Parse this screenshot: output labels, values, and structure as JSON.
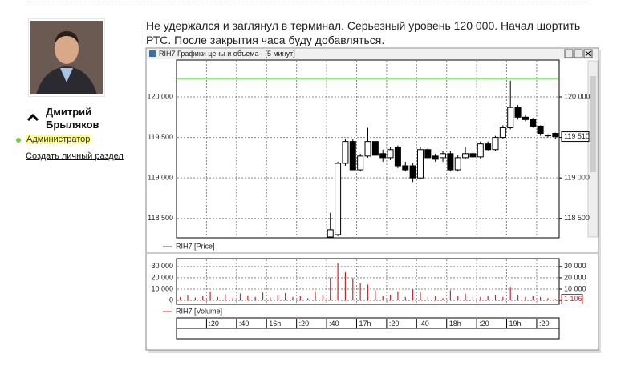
{
  "user": {
    "name": "Дмитрий Брыляков",
    "role": "Администратор",
    "link": "Создать личный раздел"
  },
  "post": {
    "text": "Не удержался и заглянул в терминал. Серьезный уровень 120 000. Начал шортить РТС. После закрытия часа буду добавляться."
  },
  "window": {
    "title": "RIH7 Графики цены и объема - [5 минут]"
  },
  "chart_data": [
    {
      "type": "candlestick",
      "legend": "RIH7 [Price]",
      "xlim": [
        0,
        51
      ],
      "ylim": [
        118260,
        120455
      ],
      "yticks": [
        {
          "value": 118500,
          "label": "118 500"
        },
        {
          "value": 119000,
          "label": "119 000"
        },
        {
          "value": 119500,
          "label": "119 500"
        },
        {
          "value": 120000,
          "label": "120 000"
        }
      ],
      "grid": true,
      "level": 120220,
      "level_color": "#66dd44",
      "up_color": "#ffffff",
      "down_color": "#000000",
      "last": {
        "value": 119510,
        "label": "119 510"
      },
      "candles": [
        {
          "x": 20,
          "open": 118270,
          "high": 118570,
          "low": 118260,
          "close": 118360
        },
        {
          "x": 21,
          "open": 118300,
          "high": 119200,
          "low": 118280,
          "close": 119180
        },
        {
          "x": 22,
          "open": 119180,
          "high": 119480,
          "low": 119150,
          "close": 119450
        },
        {
          "x": 23,
          "open": 119450,
          "high": 119480,
          "low": 119100,
          "close": 119100
        },
        {
          "x": 24,
          "open": 119100,
          "high": 119300,
          "low": 119080,
          "close": 119270
        },
        {
          "x": 25,
          "open": 119270,
          "high": 119620,
          "low": 119250,
          "close": 119450
        },
        {
          "x": 26,
          "open": 119450,
          "high": 119450,
          "low": 119280,
          "close": 119280
        },
        {
          "x": 27,
          "open": 119300,
          "high": 119350,
          "low": 119200,
          "close": 119250
        },
        {
          "x": 28,
          "open": 119250,
          "high": 119380,
          "low": 119220,
          "close": 119350
        },
        {
          "x": 29,
          "open": 119380,
          "high": 119400,
          "low": 119120,
          "close": 119150
        },
        {
          "x": 30,
          "open": 119150,
          "high": 119200,
          "low": 119080,
          "close": 119100
        },
        {
          "x": 31,
          "open": 119150,
          "high": 119180,
          "low": 118950,
          "close": 119000
        },
        {
          "x": 32,
          "open": 119000,
          "high": 119380,
          "low": 118980,
          "close": 119350
        },
        {
          "x": 33,
          "open": 119350,
          "high": 119370,
          "low": 119230,
          "close": 119250
        },
        {
          "x": 34,
          "open": 119270,
          "high": 119300,
          "low": 119200,
          "close": 119230
        },
        {
          "x": 35,
          "open": 119250,
          "high": 119330,
          "low": 119200,
          "close": 119300
        },
        {
          "x": 36,
          "open": 119300,
          "high": 119330,
          "low": 119080,
          "close": 119100
        },
        {
          "x": 37,
          "open": 119100,
          "high": 119280,
          "low": 119080,
          "close": 119250
        },
        {
          "x": 38,
          "open": 119250,
          "high": 119380,
          "low": 119230,
          "close": 119300
        },
        {
          "x": 39,
          "open": 119300,
          "high": 119330,
          "low": 119250,
          "close": 119260
        },
        {
          "x": 40,
          "open": 119260,
          "high": 119450,
          "low": 119240,
          "close": 119420
        },
        {
          "x": 41,
          "open": 119420,
          "high": 119450,
          "low": 119340,
          "close": 119350
        },
        {
          "x": 42,
          "open": 119350,
          "high": 119520,
          "low": 119330,
          "close": 119500
        },
        {
          "x": 43,
          "open": 119500,
          "high": 119650,
          "low": 119480,
          "close": 119620
        },
        {
          "x": 44,
          "open": 119620,
          "high": 120200,
          "low": 119600,
          "close": 119870
        },
        {
          "x": 45,
          "open": 119870,
          "high": 119900,
          "low": 119720,
          "close": 119750
        },
        {
          "x": 46,
          "open": 119750,
          "high": 119780,
          "low": 119700,
          "close": 119720
        },
        {
          "x": 47,
          "open": 119720,
          "high": 119740,
          "low": 119620,
          "close": 119640
        },
        {
          "x": 48,
          "open": 119640,
          "high": 119650,
          "low": 119520,
          "close": 119550
        },
        {
          "x": 49,
          "open": 119520,
          "high": 119540,
          "low": 119500,
          "close": 119530
        },
        {
          "x": 50,
          "open": 119550,
          "high": 119560,
          "low": 119480,
          "close": 119510
        }
      ]
    },
    {
      "type": "bar",
      "legend": "RIH7 [Volume]",
      "color": "#dd2222",
      "xlim": [
        0,
        51
      ],
      "ylim": [
        -3500,
        37000
      ],
      "yticks": [
        0,
        {
          "value": 10000,
          "label": "10 000"
        },
        {
          "value": 20000,
          "label": "20 000"
        },
        {
          "value": 30000,
          "label": "30 000"
        }
      ],
      "grid": true,
      "last": {
        "value": 1106,
        "label": "1 106"
      },
      "xticks": [
        {
          "value": 4,
          "label": ":20"
        },
        {
          "value": 8,
          "label": ":40"
        },
        {
          "value": 12,
          "label": "16h"
        },
        {
          "value": 16,
          "label": ":20"
        },
        {
          "value": 20,
          "label": ":40"
        },
        {
          "value": 24,
          "label": "17h"
        },
        {
          "value": 28,
          "label": ":20"
        },
        {
          "value": 32,
          "label": ":40"
        },
        {
          "value": 36,
          "label": "18h"
        },
        {
          "value": 40,
          "label": ":20"
        },
        {
          "value": 44,
          "label": "19h"
        },
        {
          "value": 48,
          "label": ":20"
        }
      ],
      "x": [
        0,
        1,
        2,
        3,
        4,
        5,
        6,
        7,
        8,
        9,
        10,
        11,
        12,
        13,
        14,
        15,
        16,
        17,
        18,
        19,
        20,
        21,
        22,
        23,
        24,
        25,
        26,
        27,
        28,
        29,
        30,
        31,
        32,
        33,
        34,
        35,
        36,
        37,
        38,
        39,
        40,
        41,
        42,
        43,
        44,
        45,
        46,
        47,
        48,
        49,
        50
      ],
      "values": [
        3000,
        5000,
        2500,
        4000,
        8000,
        3000,
        5500,
        2000,
        6000,
        4500,
        3000,
        7000,
        2500,
        5000,
        6500,
        3000,
        4000,
        2000,
        8000,
        5000,
        20000,
        33000,
        25000,
        20000,
        15000,
        14000,
        9000,
        4000,
        5000,
        8000,
        3000,
        10000,
        7000,
        3000,
        4000,
        2000,
        9000,
        4000,
        6000,
        3000,
        3000,
        4000,
        5000,
        3000,
        12000,
        5000,
        3000,
        4000,
        3000,
        2000,
        1106
      ]
    }
  ]
}
